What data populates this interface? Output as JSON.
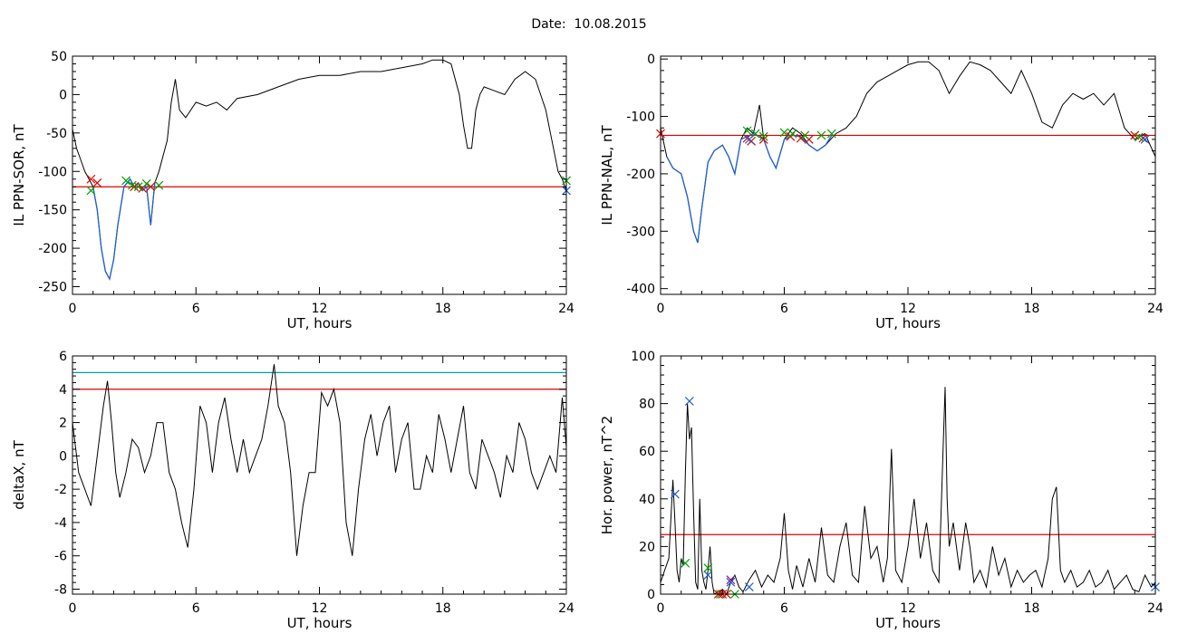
{
  "page": {
    "title": "Date:  10.08.2015"
  },
  "chart_data": [
    {
      "type": "line",
      "ylabel": "IL PPN-SOR, nT",
      "xlabel": "UT, hours",
      "xlim": [
        0,
        24
      ],
      "ylim": [
        -260,
        50
      ],
      "xticks": [
        0,
        6,
        12,
        18,
        24
      ],
      "yticks": [
        -250,
        -200,
        -150,
        -100,
        -50,
        0,
        50
      ],
      "thresholds": [
        {
          "value": -120,
          "color": "#e00000"
        }
      ],
      "series": [
        {
          "color": "#000000",
          "x": [
            0,
            0.2,
            0.4,
            0.6,
            0.8,
            1.0,
            1.2,
            1.4,
            1.6,
            1.8,
            2.0,
            2.2,
            2.5,
            2.8,
            3.0,
            3.2,
            3.4,
            3.6,
            3.8,
            4.0,
            4.2,
            4.4,
            4.6,
            4.8,
            5.0,
            5.2,
            5.5,
            6.0,
            6.5,
            7.0,
            7.5,
            8.0,
            9,
            10,
            11,
            12,
            13,
            14,
            15,
            16,
            17,
            17.5,
            18.0,
            18.4,
            18.8,
            19.0,
            19.2,
            19.4,
            19.6,
            19.8,
            20.0,
            20.5,
            21,
            21.5,
            22,
            22.5,
            23.0,
            23.3,
            23.6,
            23.8,
            24.0
          ],
          "y": [
            -45,
            -70,
            -85,
            -100,
            -110,
            -120,
            -150,
            -200,
            -230,
            -240,
            -215,
            -170,
            -120,
            -110,
            -120,
            -115,
            -125,
            -120,
            -170,
            -115,
            -100,
            -80,
            -60,
            -10,
            20,
            -20,
            -30,
            -10,
            -15,
            -10,
            -20,
            -5,
            0,
            10,
            20,
            25,
            25,
            30,
            30,
            35,
            40,
            45,
            45,
            40,
            0,
            -40,
            -70,
            -70,
            -20,
            0,
            10,
            5,
            0,
            20,
            30,
            20,
            -20,
            -60,
            -100,
            -110,
            -125
          ]
        },
        {
          "color": "#1f5fd0",
          "x": [
            1.0,
            1.2,
            1.4,
            1.6,
            1.8,
            2.0,
            2.2,
            2.5,
            2.8,
            3.0,
            3.2,
            3.4,
            3.6,
            3.8,
            4.0
          ],
          "y": [
            -120,
            -150,
            -200,
            -230,
            -240,
            -215,
            -170,
            -120,
            -110,
            -120,
            -115,
            -125,
            -120,
            -170,
            -115
          ]
        }
      ],
      "markers": [
        {
          "color": "#e00000",
          "x": [
            0.9,
            1.2,
            3.0,
            3.4,
            3.8
          ],
          "y": [
            -110,
            -115,
            -120,
            -122,
            -120
          ]
        },
        {
          "color": "#00a000",
          "x": [
            0.9,
            2.6,
            2.9,
            3.2,
            3.6,
            4.2,
            24.0
          ],
          "y": [
            -125,
            -112,
            -118,
            -120,
            -116,
            -118,
            -112
          ]
        },
        {
          "color": "#1f5fd0",
          "x": [
            24.0
          ],
          "y": [
            -125
          ]
        }
      ]
    },
    {
      "type": "line",
      "ylabel": "IL PPN-NAL, nT",
      "xlabel": "UT, hours",
      "xlim": [
        0,
        24
      ],
      "ylim": [
        -410,
        5
      ],
      "xticks": [
        0,
        6,
        12,
        18,
        24
      ],
      "yticks": [
        -400,
        -300,
        -200,
        -100,
        0
      ],
      "thresholds": [
        {
          "value": -133,
          "color": "#e00000"
        }
      ],
      "series": [
        {
          "color": "#000000",
          "x": [
            0,
            0.3,
            0.6,
            1.0,
            1.3,
            1.6,
            1.8,
            2.0,
            2.3,
            2.6,
            3.0,
            3.3,
            3.6,
            3.9,
            4.2,
            4.5,
            4.8,
            5.0,
            5.3,
            5.6,
            6.0,
            6.4,
            6.8,
            7.2,
            7.6,
            8.0,
            8.5,
            9,
            9.5,
            10,
            10.5,
            11,
            11.5,
            12,
            12.5,
            13,
            13.5,
            14,
            14.5,
            15,
            15.5,
            16,
            16.5,
            17,
            17.5,
            18,
            18.5,
            19,
            19.5,
            20,
            20.5,
            21,
            21.5,
            22,
            22.5,
            23,
            23.5,
            24
          ],
          "y": [
            -120,
            -170,
            -190,
            -200,
            -240,
            -300,
            -320,
            -260,
            -180,
            -160,
            -150,
            -170,
            -200,
            -140,
            -120,
            -130,
            -80,
            -140,
            -170,
            -190,
            -140,
            -120,
            -130,
            -150,
            -160,
            -150,
            -130,
            -120,
            -100,
            -60,
            -40,
            -30,
            -20,
            -10,
            -5,
            -5,
            -20,
            -60,
            -30,
            -5,
            -10,
            -20,
            -40,
            -60,
            -20,
            -60,
            -110,
            -120,
            -80,
            -60,
            -70,
            -60,
            -80,
            -60,
            -120,
            -140,
            -130,
            -170
          ]
        },
        {
          "color": "#1f5fd0",
          "x": [
            0.3,
            0.6,
            1.0,
            1.3,
            1.6,
            1.8,
            2.0,
            2.3,
            2.6,
            3.0,
            3.3,
            3.6,
            3.9,
            4.2,
            4.5,
            5.0,
            5.3,
            5.6,
            6.0,
            6.4,
            6.8,
            7.2,
            7.6,
            8.0,
            8.3
          ],
          "y": [
            -170,
            -190,
            -200,
            -240,
            -300,
            -320,
            -260,
            -180,
            -160,
            -150,
            -170,
            -200,
            -140,
            -135,
            -130,
            -140,
            -170,
            -190,
            -140,
            -133,
            -135,
            -150,
            -160,
            -150,
            -133
          ]
        }
      ],
      "markers": [
        {
          "color": "#e00000",
          "x": [
            0,
            4.2,
            4.4,
            5.0,
            6.3,
            6.8,
            7.2,
            23.0,
            23.4
          ],
          "y": [
            -130,
            -138,
            -143,
            -140,
            -135,
            -138,
            -140,
            -133,
            -138
          ]
        },
        {
          "color": "#00a000",
          "x": [
            4.2,
            4.6,
            5.0,
            6.0,
            6.4,
            7.0,
            7.8,
            8.3,
            23.2
          ],
          "y": [
            -125,
            -130,
            -135,
            -128,
            -130,
            -133,
            -133,
            -130,
            -136
          ]
        },
        {
          "color": "#1f5fd0",
          "x": [
            4.3,
            23.5
          ],
          "y": [
            -140,
            -140
          ]
        }
      ]
    },
    {
      "type": "line",
      "ylabel": "deltaX, nT",
      "xlabel": "UT, hours",
      "xlim": [
        0,
        24
      ],
      "ylim": [
        -8.3,
        6
      ],
      "xticks": [
        0,
        6,
        12,
        18,
        24
      ],
      "yticks": [
        -8,
        -6,
        -4,
        -2,
        0,
        2,
        4,
        6
      ],
      "thresholds": [
        {
          "value": 5,
          "color": "#00a0a0"
        },
        {
          "value": 4,
          "color": "#e00000"
        }
      ],
      "series": [
        {
          "color": "#000000",
          "x": [
            0,
            0.3,
            0.6,
            0.9,
            1.2,
            1.5,
            1.7,
            1.9,
            2.1,
            2.3,
            2.6,
            2.9,
            3.2,
            3.5,
            3.8,
            4.1,
            4.4,
            4.7,
            5.0,
            5.3,
            5.6,
            5.9,
            6.2,
            6.5,
            6.8,
            7.1,
            7.4,
            7.7,
            8.0,
            8.3,
            8.6,
            8.9,
            9.2,
            9.5,
            9.8,
            10.0,
            10.3,
            10.6,
            10.9,
            11.2,
            11.5,
            11.8,
            12.1,
            12.4,
            12.7,
            13.0,
            13.3,
            13.6,
            13.9,
            14.2,
            14.5,
            14.8,
            15.1,
            15.4,
            15.7,
            16.0,
            16.3,
            16.6,
            16.9,
            17.2,
            17.5,
            17.8,
            18.1,
            18.4,
            18.7,
            19.0,
            19.3,
            19.6,
            19.9,
            20.2,
            20.5,
            20.8,
            21.1,
            21.4,
            21.7,
            22.0,
            22.3,
            22.6,
            22.9,
            23.2,
            23.5,
            23.8,
            24.0
          ],
          "y": [
            2,
            -1,
            -2,
            -3,
            0,
            3,
            4.5,
            2,
            -1,
            -2.5,
            -1,
            1,
            0.5,
            -1,
            0,
            2,
            2,
            -1,
            -2,
            -4,
            -5.5,
            -2,
            3,
            2,
            -1,
            2,
            3.5,
            1,
            -1,
            1,
            -1,
            0,
            1,
            3,
            5.5,
            3,
            2,
            -1,
            -6,
            -3,
            -1,
            -1,
            3.8,
            3,
            4,
            2,
            -4,
            -6,
            -2,
            1,
            2.5,
            0,
            2,
            3,
            -1,
            1,
            2,
            -2,
            -2,
            0,
            -1,
            2.5,
            1,
            -1,
            1,
            3,
            -1,
            -2,
            1,
            0,
            -1,
            -2.5,
            0,
            -1,
            2,
            1,
            -1,
            -2,
            -1,
            0,
            -1,
            3.5,
            0.5
          ]
        }
      ],
      "markers": []
    },
    {
      "type": "line",
      "ylabel": "Hor. power, nT^2",
      "xlabel": "UT, hours",
      "xlim": [
        0,
        24
      ],
      "ylim": [
        0,
        100
      ],
      "xticks": [
        0,
        6,
        12,
        18,
        24
      ],
      "yticks": [
        0,
        20,
        40,
        60,
        80,
        100
      ],
      "thresholds": [
        {
          "value": 25,
          "color": "#e00000"
        }
      ],
      "series": [
        {
          "color": "#000000",
          "x": [
            0,
            0.2,
            0.4,
            0.6,
            0.7,
            0.8,
            0.9,
            1.0,
            1.1,
            1.2,
            1.3,
            1.4,
            1.5,
            1.6,
            1.7,
            1.8,
            1.9,
            2.0,
            2.1,
            2.2,
            2.3,
            2.4,
            2.5,
            2.6,
            2.8,
            3.0,
            3.2,
            3.4,
            3.6,
            3.8,
            4.0,
            4.3,
            4.6,
            4.9,
            5.2,
            5.5,
            5.8,
            6.0,
            6.2,
            6.4,
            6.6,
            6.9,
            7.2,
            7.5,
            7.8,
            8.1,
            8.4,
            8.7,
            9.0,
            9.3,
            9.6,
            9.9,
            10.2,
            10.5,
            10.8,
            11.0,
            11.2,
            11.4,
            11.7,
            12.0,
            12.3,
            12.6,
            12.9,
            13.2,
            13.5,
            13.7,
            13.8,
            13.9,
            14.0,
            14.2,
            14.5,
            14.8,
            15.0,
            15.2,
            15.5,
            15.8,
            16.1,
            16.4,
            16.7,
            17.0,
            17.3,
            17.6,
            17.9,
            18.2,
            18.5,
            18.8,
            19.0,
            19.2,
            19.4,
            19.6,
            19.9,
            20.2,
            20.5,
            20.8,
            21.1,
            21.4,
            21.7,
            22.0,
            22.3,
            22.6,
            22.9,
            23.2,
            23.5,
            23.8,
            24.0
          ],
          "y": [
            5,
            10,
            15,
            48,
            30,
            10,
            5,
            15,
            12,
            50,
            80,
            65,
            70,
            35,
            5,
            2,
            40,
            10,
            5,
            2,
            10,
            20,
            5,
            0,
            1,
            2,
            0,
            5,
            8,
            3,
            1,
            6,
            10,
            3,
            8,
            5,
            15,
            34,
            10,
            2,
            12,
            3,
            15,
            5,
            28,
            8,
            5,
            20,
            30,
            8,
            5,
            37,
            15,
            20,
            5,
            15,
            61,
            10,
            5,
            20,
            40,
            15,
            30,
            10,
            5,
            60,
            87,
            40,
            20,
            30,
            10,
            30,
            20,
            5,
            10,
            3,
            20,
            8,
            15,
            3,
            10,
            5,
            8,
            10,
            3,
            15,
            40,
            45,
            10,
            5,
            10,
            3,
            5,
            10,
            3,
            5,
            10,
            2,
            5,
            8,
            2,
            1,
            8,
            3,
            5
          ]
        }
      ],
      "markers": [
        {
          "color": "#1f5fd0",
          "x": [
            0.7,
            1.4,
            2.3,
            3.4,
            4.3,
            24.0
          ],
          "y": [
            42,
            81,
            8,
            5,
            3,
            3
          ]
        },
        {
          "color": "#00a000",
          "x": [
            1.2,
            2.3,
            2.9,
            3.6
          ],
          "y": [
            13,
            11,
            0,
            0
          ]
        },
        {
          "color": "#e00000",
          "x": [
            2.8,
            3.0,
            3.2
          ],
          "y": [
            0,
            0,
            0
          ]
        },
        {
          "color": "#8a1a8a",
          "x": [
            3.4
          ],
          "y": [
            6
          ]
        }
      ]
    }
  ]
}
